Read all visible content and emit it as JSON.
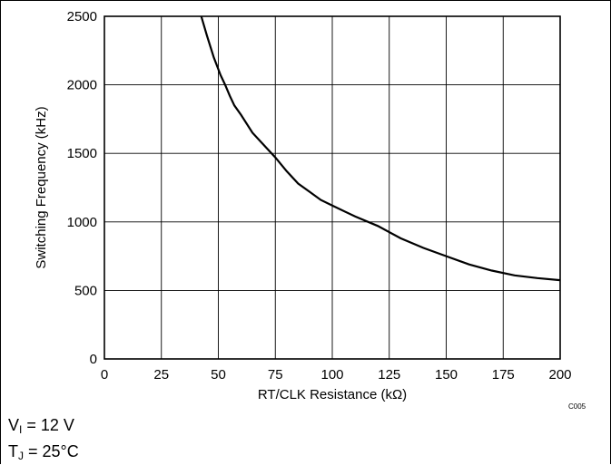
{
  "chart_data": {
    "type": "line",
    "title": "",
    "xlabel": "RT/CLK Resistance (kΩ)",
    "ylabel": "Switching Frequency (kHz)",
    "xlim": [
      0,
      200
    ],
    "ylim": [
      0,
      2500
    ],
    "xticks": [
      0,
      25,
      50,
      75,
      100,
      125,
      150,
      175,
      200
    ],
    "yticks": [
      0,
      500,
      1000,
      1500,
      2000,
      2500
    ],
    "grid": true,
    "series": [
      {
        "name": "",
        "color": "#000000",
        "x": [
          42.5,
          45,
          48,
          51,
          53,
          55,
          57,
          60,
          65,
          70,
          75,
          80,
          85,
          90,
          95,
          100,
          110,
          120,
          130,
          140,
          150,
          160,
          170,
          180,
          190,
          200
        ],
        "y": [
          2500,
          2360,
          2200,
          2070,
          2000,
          1920,
          1850,
          1780,
          1650,
          1560,
          1470,
          1370,
          1280,
          1220,
          1160,
          1120,
          1040,
          970,
          880,
          810,
          750,
          690,
          645,
          610,
          590,
          575
        ]
      }
    ],
    "annotations": [
      "C005"
    ]
  },
  "conditions": {
    "v_main": "V",
    "v_sub": "I",
    "v_rest": " = 12 V",
    "t_main": "T",
    "t_sub": "J",
    "t_rest": " = 25°C"
  }
}
